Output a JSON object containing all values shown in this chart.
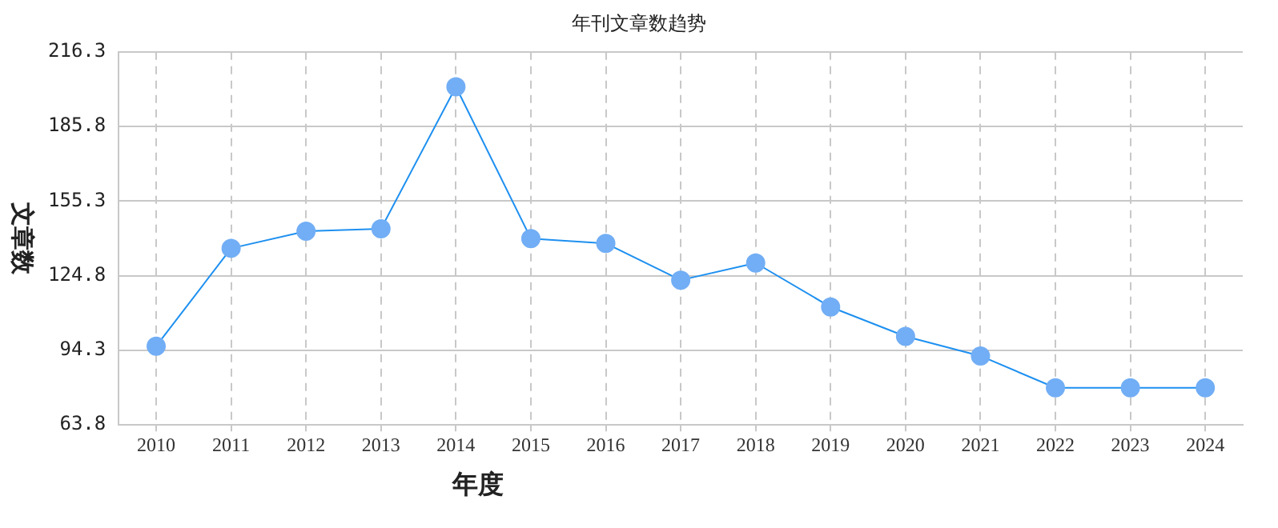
{
  "chart_data": {
    "type": "line",
    "title": "年刊文章数趋势",
    "xlabel": "年度",
    "ylabel": "文章数",
    "categories": [
      "2010",
      "2011",
      "2012",
      "2013",
      "2014",
      "2015",
      "2016",
      "2017",
      "2018",
      "2019",
      "2020",
      "2021",
      "2022",
      "2023",
      "2024"
    ],
    "series": [
      {
        "color": "#1e90f0",
        "values": [
          96,
          136,
          143,
          144,
          202,
          140,
          138,
          123,
          130,
          112,
          100,
          92,
          79,
          79,
          79
        ]
      }
    ],
    "ylim": [
      63.8,
      216.3
    ],
    "yticks": [
      63.8,
      94.3,
      124.8,
      155.3,
      185.8,
      216.3
    ],
    "grid": true,
    "marker": "circle",
    "line_style": "solid",
    "legend": false
  }
}
